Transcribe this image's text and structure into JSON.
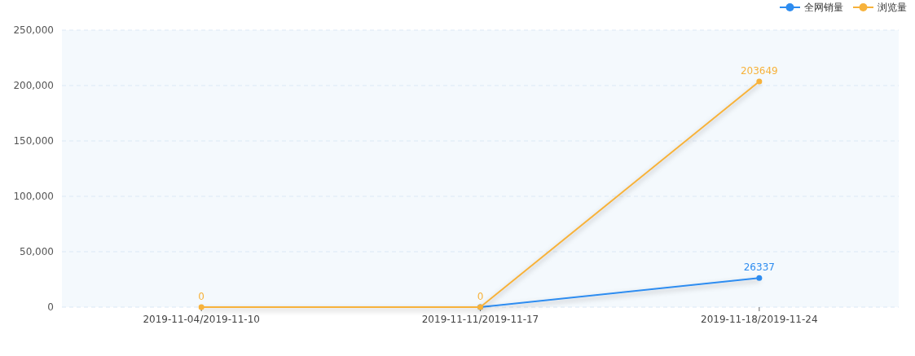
{
  "chart_data": {
    "type": "line",
    "categories": [
      "2019-11-04/2019-11-10",
      "2019-11-11/2019-11-17",
      "2019-11-18/2019-11-24"
    ],
    "series": [
      {
        "name": "全网销量",
        "color": "#2d8cf0",
        "values": [
          null,
          0,
          26337
        ],
        "value_labels": [
          null,
          null,
          "26337"
        ]
      },
      {
        "name": "浏览量",
        "color": "#f7b23b",
        "values": [
          0,
          0,
          203649
        ],
        "value_labels": [
          "0",
          "0",
          "203649"
        ]
      }
    ],
    "ylim": [
      0,
      250000
    ],
    "yticks": [
      0,
      {
        "value": 50000,
        "label": "50,000"
      },
      {
        "value": 100000,
        "label": "100,000"
      },
      {
        "value": 150000,
        "label": "150,000"
      },
      {
        "value": 200000,
        "label": "200,000"
      },
      {
        "value": 250000,
        "label": "250,000"
      }
    ],
    "grid": "y",
    "legend": "top right",
    "marker": "circle",
    "line_style": "solid"
  }
}
